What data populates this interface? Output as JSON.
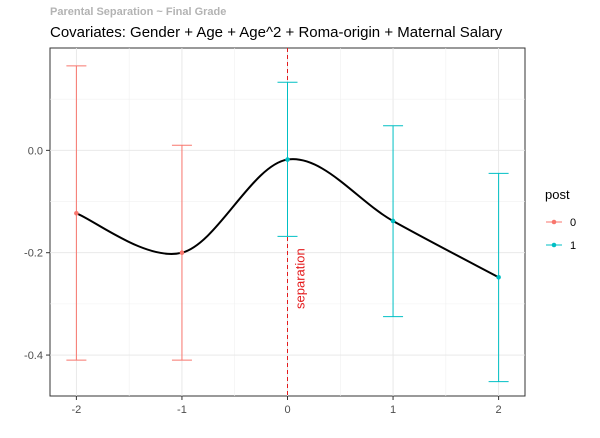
{
  "header": {
    "supertitle": "Parental Separation ~ Final Grade",
    "title": "Covariates: Gender + Age + Age^2 + Roma-origin + Maternal Salary"
  },
  "chart_data": {
    "type": "scatter",
    "title": "Covariates: Gender + Age + Age^2 + Roma-origin + Maternal Salary",
    "xlabel": "",
    "ylabel": "",
    "xlim": [
      -2.25,
      2.25
    ],
    "ylim": [
      -0.48,
      0.2
    ],
    "x_ticks": [
      -2,
      -1,
      0,
      1,
      2
    ],
    "x_tick_labels": [
      "-2",
      "-1",
      "0",
      "1",
      "2"
    ],
    "y_ticks": [
      0.0,
      -0.2,
      -0.4
    ],
    "y_tick_labels": [
      "0.0",
      "-0.2",
      "-0.4"
    ],
    "grid": true,
    "points": [
      {
        "x": -2,
        "y": -0.123,
        "lo": -0.41,
        "hi": 0.165,
        "post": "0"
      },
      {
        "x": -1,
        "y": -0.2,
        "lo": -0.41,
        "hi": 0.01,
        "post": "0"
      },
      {
        "x": 0,
        "y": -0.018,
        "lo": -0.168,
        "hi": 0.133,
        "post": "1"
      },
      {
        "x": 1,
        "y": -0.138,
        "lo": -0.325,
        "hi": 0.048,
        "post": "1"
      },
      {
        "x": 2,
        "y": -0.248,
        "lo": -0.452,
        "hi": -0.045,
        "post": "1"
      }
    ],
    "vline": {
      "x": 0,
      "label": "separation",
      "color": "#e41a1c"
    },
    "smooth_color": "#000000",
    "legend": {
      "title": "post",
      "position": "right",
      "entries": [
        {
          "label": "0",
          "color": "#f8766d"
        },
        {
          "label": "1",
          "color": "#00bfc4"
        }
      ]
    }
  }
}
